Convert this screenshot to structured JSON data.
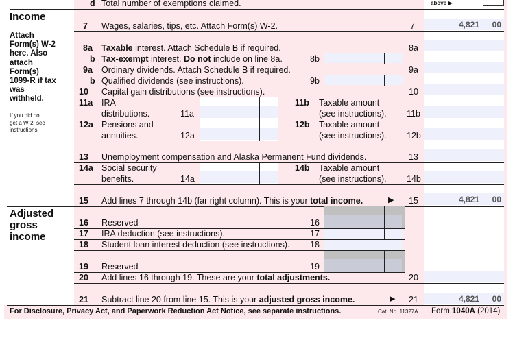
{
  "top": {
    "line_d_label": "d",
    "line_d_text": "Total number of exemptions claimed.",
    "above": "above ▶"
  },
  "income": {
    "heading": "Income",
    "attach_note": [
      "Attach",
      "Form(s) W-2",
      "here. Also",
      "attach",
      "Form(s)",
      "1099-R if tax",
      "was",
      "withheld."
    ],
    "w2_note": [
      "If you did not",
      "get a W-2, see",
      "instructions."
    ]
  },
  "lines": {
    "l7": {
      "num": "7",
      "text": "Wages, salaries, tips, etc. Attach Form(s) W-2.",
      "box": "7",
      "dollars": "4,821",
      "cents": "00"
    },
    "l8a": {
      "num": "8a",
      "bold": "Taxable",
      "text": " interest. Attach Schedule B if required.",
      "box": "8a"
    },
    "l8b": {
      "num": "b",
      "bold": "Tax-exempt",
      "mid": " interest. ",
      "bold2": "Do not",
      "text": " include on line 8a.",
      "box": "8b"
    },
    "l9a": {
      "num": "9a",
      "text": "Ordinary dividends. Attach Schedule B if required.",
      "box": "9a"
    },
    "l9b": {
      "num": "b",
      "text": "Qualified dividends (see instructions).",
      "box": "9b"
    },
    "l10": {
      "num": "10",
      "text": "Capital gain distributions (see instructions).",
      "box": "10"
    },
    "l11a": {
      "num": "11a",
      "text1": "IRA",
      "text2": "distributions.",
      "box": "11a"
    },
    "l11b": {
      "num": "11b",
      "text1": "Taxable amount",
      "text2": "(see instructions).",
      "box": "11b"
    },
    "l12a": {
      "num": "12a",
      "text1": "Pensions and",
      "text2": "annuities.",
      "box": "12a"
    },
    "l12b": {
      "num": "12b",
      "text1": "Taxable amount",
      "text2": "(see instructions).",
      "box": "12b"
    },
    "l13": {
      "num": "13",
      "text": "Unemployment compensation and Alaska Permanent Fund dividends.",
      "box": "13"
    },
    "l14a": {
      "num": "14a",
      "text1": "Social security",
      "text2": "benefits.",
      "box": "14a"
    },
    "l14b": {
      "num": "14b",
      "text1": "Taxable amount",
      "text2": "(see instructions).",
      "box": "14b"
    },
    "l15": {
      "num": "15",
      "text": "Add lines 7 through 14b (far right column). This is your ",
      "bold": "total income.",
      "arrow": "▶",
      "box": "15",
      "dollars": "4,821",
      "cents": "00"
    },
    "l16": {
      "num": "16",
      "text": "Reserved",
      "box": "16"
    },
    "l17": {
      "num": "17",
      "text": "IRA deduction (see instructions).",
      "box": "17"
    },
    "l18": {
      "num": "18",
      "text": "Student loan interest deduction (see instructions).",
      "box": "18"
    },
    "l19": {
      "num": "19",
      "text": "Reserved",
      "box": "19"
    },
    "l20": {
      "num": "20",
      "text": "Add lines 16 through 19. These are your ",
      "bold": "total adjustments.",
      "box": "20"
    },
    "l21": {
      "num": "21",
      "text": "Subtract line 20 from line 15. This is your ",
      "bold": "adjusted gross income.",
      "arrow": "▶",
      "box": "21",
      "dollars": "4,821",
      "cents": "00"
    }
  },
  "agi": {
    "heading": [
      "Adjusted",
      "gross",
      "income"
    ]
  },
  "footer": {
    "notice": "For Disclosure, Privacy Act, and Paperwork Reduction Act Notice, see separate instructions.",
    "cat": "Cat. No. 11327A",
    "form_prefix": "Form ",
    "form_num": "1040A",
    "year": " (2014)"
  }
}
